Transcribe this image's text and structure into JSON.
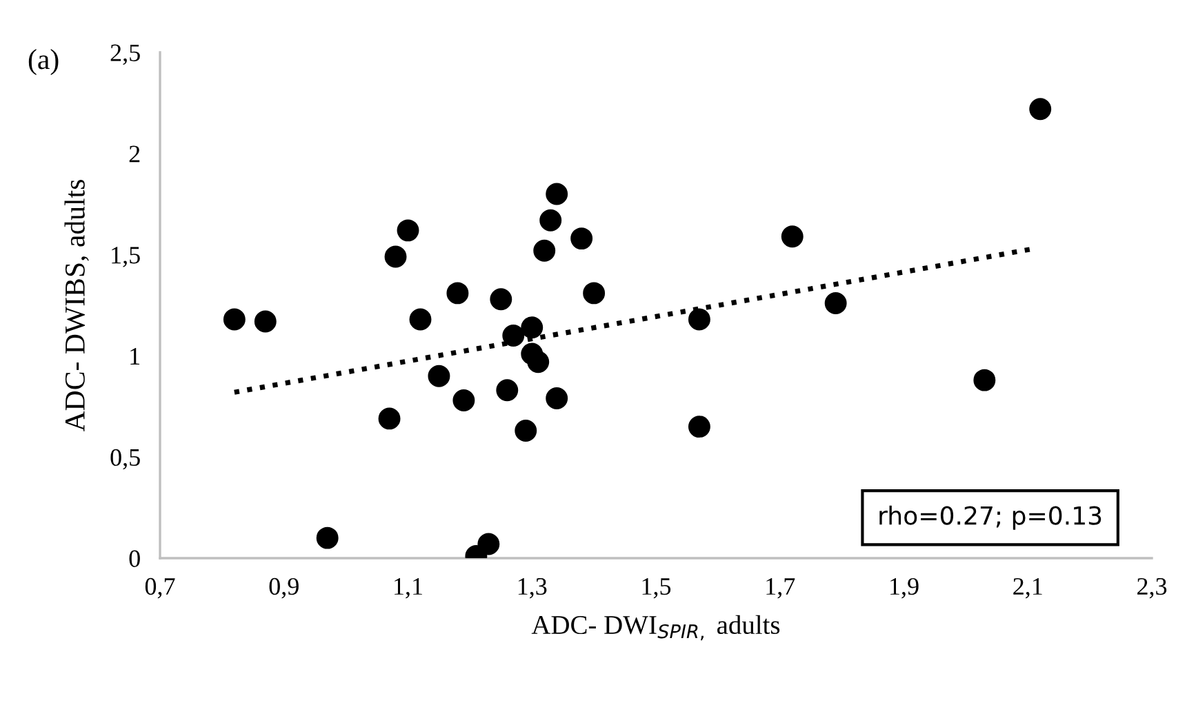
{
  "chart_data": {
    "type": "scatter",
    "title": "(a)",
    "xlabel": "ADC- DWI$_{SPIR,}$ adults",
    "ylabel": "ADC- DWIBS, adults",
    "annotations": [
      "rho=0.27; p=0.13"
    ],
    "grid": false,
    "xlim": [
      0.7,
      2.3
    ],
    "xticks": [
      {
        "value": 0.7,
        "label": "0,7"
      },
      {
        "value": 0.9,
        "label": "0,9"
      },
      {
        "value": 1.1,
        "label": "1,1"
      },
      {
        "value": 1.3,
        "label": "1,3"
      },
      {
        "value": 1.5,
        "label": "1,5"
      },
      {
        "value": 1.7,
        "label": "1,7"
      },
      {
        "value": 1.9,
        "label": "1,9"
      },
      {
        "value": 2.1,
        "label": "2,1"
      },
      {
        "value": 2.3,
        "label": "2,3"
      }
    ],
    "ylim": [
      0,
      2.5
    ],
    "yticks": [
      0,
      {
        "value": 0.5,
        "label": "0,5"
      },
      1,
      {
        "value": 1.5,
        "label": "1,5"
      },
      2,
      {
        "value": 2.5,
        "label": "2,5"
      }
    ],
    "series": [
      {
        "color": "#000000",
        "marker": "circle",
        "x": [
          0.82,
          0.87,
          0.97,
          1.08,
          1.1,
          1.07,
          1.12,
          1.15,
          1.18,
          1.19,
          1.25,
          1.21,
          1.23,
          1.26,
          1.27,
          1.29,
          1.3,
          1.3,
          1.31,
          1.32,
          1.33,
          1.34,
          1.34,
          1.38,
          1.4,
          1.57,
          1.57,
          1.72,
          1.79,
          2.03,
          2.12
        ],
        "values": [
          1.18,
          1.17,
          0.1,
          1.49,
          1.62,
          0.69,
          1.18,
          0.9,
          1.31,
          0.78,
          1.28,
          0.01,
          0.07,
          0.83,
          1.1,
          0.63,
          1.14,
          1.01,
          0.97,
          1.52,
          1.67,
          1.8,
          0.79,
          1.58,
          1.31,
          1.18,
          0.65,
          1.59,
          1.26,
          0.88,
          2.22
        ]
      },
      {
        "type": "line",
        "color": "#000000",
        "line_style": "dotted",
        "x": [
          0.82,
          2.11
        ],
        "values": [
          0.82,
          1.53
        ]
      }
    ]
  }
}
